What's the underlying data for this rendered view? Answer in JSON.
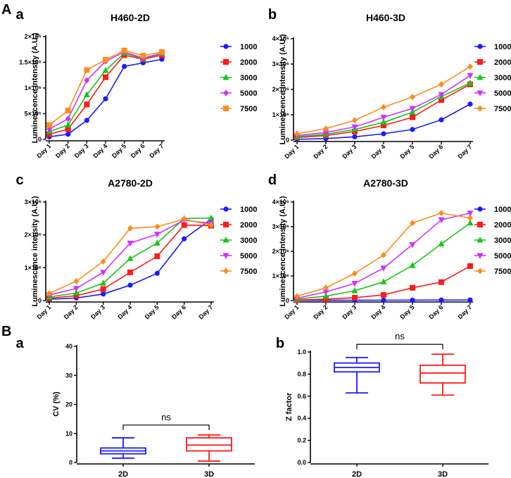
{
  "section_labels": {
    "A": "A",
    "B": "B"
  },
  "chart_data": [
    {
      "panel": "a",
      "type": "line",
      "title": "H460-2D",
      "ylabel": "Luminescence intensity (A.U.)",
      "categories": [
        "Day 1",
        "Day 2",
        "Day 3",
        "Day 4",
        "Day 5",
        "Day 6",
        "Day 7"
      ],
      "ylim": [
        0,
        2000000
      ],
      "yticks": [
        0,
        500000,
        1000000,
        1500000,
        2000000
      ],
      "ytick_labels": [
        "0",
        "5×10⁵",
        "1×10⁶",
        "1.5×10⁶",
        "2×10⁶"
      ],
      "series": [
        {
          "name": "1000",
          "color": "#1a1aff",
          "marker": "circle",
          "values": [
            50000,
            100000,
            370000,
            790000,
            1420000,
            1490000,
            1560000
          ]
        },
        {
          "name": "2000",
          "color": "#ff1a1a",
          "marker": "square",
          "values": [
            100000,
            200000,
            680000,
            1210000,
            1640000,
            1560000,
            1640000
          ]
        },
        {
          "name": "3000",
          "color": "#19c419",
          "marker": "triangle-up",
          "values": [
            150000,
            280000,
            870000,
            1340000,
            1680000,
            1570000,
            1670000
          ]
        },
        {
          "name": "5000",
          "color": "#cc33ff",
          "marker": "diamond",
          "values": [
            200000,
            400000,
            1150000,
            1520000,
            1700000,
            1580000,
            1680000
          ]
        },
        {
          "name": "7500",
          "color": "#ff8c1a",
          "marker": "square",
          "values": [
            280000,
            560000,
            1350000,
            1550000,
            1730000,
            1630000,
            1700000
          ]
        }
      ]
    },
    {
      "panel": "b",
      "type": "line",
      "title": "H460-3D",
      "ylabel": "Luminescence intensity (A.U.)",
      "categories": [
        "Day 1",
        "Day 2",
        "Day 3",
        "Day 4",
        "Day 5",
        "Day 6",
        "Day 7"
      ],
      "ylim": [
        0,
        4000000
      ],
      "yticks": [
        0,
        1000000,
        2000000,
        3000000,
        4000000
      ],
      "ytick_labels": [
        "0",
        "1×10⁶",
        "2×10⁶",
        "3×10⁶",
        "4×10⁶"
      ],
      "series": [
        {
          "name": "1000",
          "color": "#1a1aff",
          "marker": "circle",
          "values": [
            30000,
            60000,
            130000,
            250000,
            420000,
            800000,
            1420000
          ]
        },
        {
          "name": "2000",
          "color": "#ff1a1a",
          "marker": "square",
          "values": [
            100000,
            180000,
            340000,
            580000,
            900000,
            1580000,
            2200000
          ]
        },
        {
          "name": "3000",
          "color": "#19c419",
          "marker": "triangle-up",
          "values": [
            130000,
            230000,
            420000,
            700000,
            1100000,
            1720000,
            2250000
          ]
        },
        {
          "name": "5000",
          "color": "#cc33ff",
          "marker": "triangle-down",
          "values": [
            180000,
            300000,
            520000,
            900000,
            1250000,
            1800000,
            2550000
          ]
        },
        {
          "name": "7500",
          "color": "#ff8c1a",
          "marker": "diamond",
          "values": [
            250000,
            450000,
            780000,
            1300000,
            1700000,
            2200000,
            2900000
          ]
        }
      ]
    },
    {
      "panel": "c",
      "type": "line",
      "title": "A2780-2D",
      "ylabel": "Luminescence intensity (A.U.)",
      "categories": [
        "Day 1",
        "Day 2",
        "Day 3",
        "Day 4",
        "Day 5",
        "Day 6",
        "Day 7"
      ],
      "ylim": [
        0,
        3000000
      ],
      "yticks": [
        0,
        1000000,
        2000000,
        3000000
      ],
      "ytick_labels": [
        "0",
        "1×10⁶",
        "2×10⁶",
        "3×10⁶"
      ],
      "series": [
        {
          "name": "1000",
          "color": "#1a1aff",
          "marker": "circle",
          "values": [
            40000,
            80000,
            200000,
            470000,
            830000,
            1880000,
            2480000
          ]
        },
        {
          "name": "2000",
          "color": "#ff1a1a",
          "marker": "square",
          "values": [
            70000,
            150000,
            350000,
            860000,
            1350000,
            2300000,
            2280000
          ]
        },
        {
          "name": "3000",
          "color": "#19c419",
          "marker": "triangle-up",
          "values": [
            110000,
            230000,
            530000,
            1280000,
            1750000,
            2500000,
            2510000
          ]
        },
        {
          "name": "5000",
          "color": "#cc33ff",
          "marker": "triangle-down",
          "values": [
            170000,
            370000,
            860000,
            1750000,
            2020000,
            2450000,
            2350000
          ]
        },
        {
          "name": "7500",
          "color": "#ff8c1a",
          "marker": "diamond",
          "values": [
            220000,
            590000,
            1190000,
            2200000,
            2250000,
            2480000,
            2300000
          ]
        }
      ]
    },
    {
      "panel": "d",
      "type": "line",
      "title": "A2780-3D",
      "ylabel": "Luminescence intensity (A.U.)",
      "categories": [
        "Day 1",
        "Day 2",
        "Day 3",
        "Day 4",
        "Day 5",
        "Day 6",
        "Day 7"
      ],
      "ylim": [
        0,
        4000000
      ],
      "yticks": [
        0,
        1000000,
        2000000,
        3000000,
        4000000
      ],
      "ytick_labels": [
        "0",
        "1×10⁶",
        "2×10⁶",
        "3×10⁶",
        "4×10⁶"
      ],
      "series": [
        {
          "name": "1000",
          "color": "#1a1aff",
          "marker": "circle",
          "values": [
            10000,
            12000,
            15000,
            18000,
            20000,
            22000,
            25000
          ]
        },
        {
          "name": "2000",
          "color": "#ff1a1a",
          "marker": "square",
          "values": [
            20000,
            60000,
            120000,
            230000,
            520000,
            750000,
            1400000
          ]
        },
        {
          "name": "3000",
          "color": "#19c419",
          "marker": "triangle-up",
          "values": [
            60000,
            180000,
            400000,
            760000,
            1430000,
            2300000,
            3150000
          ]
        },
        {
          "name": "5000",
          "color": "#cc33ff",
          "marker": "triangle-down",
          "values": [
            100000,
            350000,
            700000,
            1320000,
            2270000,
            3280000,
            3550000
          ]
        },
        {
          "name": "7500",
          "color": "#ff8c1a",
          "marker": "diamond",
          "values": [
            180000,
            520000,
            1100000,
            1850000,
            3150000,
            3550000,
            3350000
          ]
        }
      ]
    },
    {
      "panel": "a",
      "type": "box",
      "title": "",
      "ylabel": "CV (%)",
      "categories": [
        "2D",
        "3D"
      ],
      "ylim": [
        0,
        40
      ],
      "yticks": [
        0,
        10,
        20,
        30,
        40
      ],
      "ytick_labels": [
        "0",
        "10",
        "20",
        "30",
        "40"
      ],
      "annotation": "ns",
      "boxes": [
        {
          "name": "2D",
          "color": "#1a1aff",
          "min": 1.5,
          "q1": 3.0,
          "median": 4.0,
          "q3": 5.0,
          "max": 8.5
        },
        {
          "name": "3D",
          "color": "#ff1a1a",
          "min": 0.5,
          "q1": 4.0,
          "median": 6.0,
          "q3": 8.5,
          "max": 9.5
        }
      ]
    },
    {
      "panel": "b",
      "type": "box",
      "title": "",
      "ylabel": "Z factor",
      "categories": [
        "2D",
        "3D"
      ],
      "ylim": [
        0,
        1.0
      ],
      "yticks": [
        0,
        0.2,
        0.4,
        0.6,
        0.8,
        1.0
      ],
      "ytick_labels": [
        "0.0",
        "0.2",
        "0.4",
        "0.6",
        "0.8",
        "1.0"
      ],
      "annotation": "ns",
      "boxes": [
        {
          "name": "2D",
          "color": "#1a1aff",
          "min": 0.63,
          "q1": 0.82,
          "median": 0.86,
          "q3": 0.9,
          "max": 0.95
        },
        {
          "name": "3D",
          "color": "#ff1a1a",
          "min": 0.61,
          "q1": 0.72,
          "median": 0.81,
          "q3": 0.88,
          "max": 0.98
        }
      ]
    }
  ]
}
